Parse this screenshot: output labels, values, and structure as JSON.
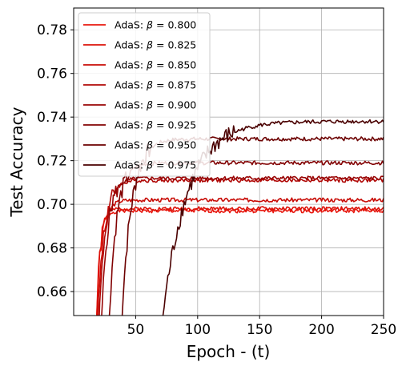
{
  "chart_data": {
    "type": "line",
    "title": "",
    "xlabel": "Epoch - (t)",
    "ylabel": "Test Accuracy",
    "xlim": [
      0,
      250
    ],
    "ylim": [
      0.649,
      0.79
    ],
    "xticks": [
      50,
      100,
      150,
      200,
      250
    ],
    "yticks": [
      0.66,
      0.68,
      0.7,
      0.72,
      0.74,
      0.76,
      0.78
    ],
    "ytick_labels": [
      "0.66",
      "0.68",
      "0.70",
      "0.72",
      "0.74",
      "0.76",
      "0.78"
    ],
    "grid": true,
    "legend_position": "top-left",
    "legend_prefix": "AdaS: ",
    "series": [
      {
        "name": "β = 0.800",
        "beta_label": "0.800",
        "color": "#e8180f",
        "start": 18,
        "tau": 3,
        "plateau": 0.697,
        "x": [
          18,
          20,
          22,
          24,
          26,
          28,
          30,
          35,
          40,
          50,
          60,
          80,
          100,
          125,
          150,
          175,
          200,
          225,
          250
        ],
        "y": [
          0.649,
          0.667,
          0.678,
          0.686,
          0.69,
          0.693,
          0.695,
          0.696,
          0.697,
          0.697,
          0.697,
          0.697,
          0.697,
          0.697,
          0.697,
          0.697,
          0.697,
          0.697,
          0.697
        ]
      },
      {
        "name": "β = 0.825",
        "beta_label": "0.825",
        "color": "#dc1209",
        "start": 18,
        "tau": 3,
        "plateau": 0.698,
        "x": [
          18,
          20,
          22,
          24,
          26,
          28,
          30,
          35,
          40,
          50,
          60,
          80,
          100,
          125,
          150,
          175,
          200,
          225,
          250
        ],
        "y": [
          0.649,
          0.668,
          0.679,
          0.687,
          0.691,
          0.694,
          0.696,
          0.697,
          0.698,
          0.698,
          0.698,
          0.698,
          0.698,
          0.698,
          0.698,
          0.698,
          0.698,
          0.698,
          0.698
        ]
      },
      {
        "name": "β = 0.850",
        "beta_label": "0.850",
        "color": "#c80c06",
        "start": 19,
        "tau": 4,
        "plateau": 0.702,
        "x": [
          19,
          21,
          23,
          25,
          27,
          29,
          32,
          36,
          40,
          50,
          60,
          80,
          100,
          125,
          150,
          175,
          200,
          225,
          250
        ],
        "y": [
          0.649,
          0.664,
          0.675,
          0.684,
          0.69,
          0.694,
          0.698,
          0.7,
          0.701,
          0.702,
          0.702,
          0.702,
          0.702,
          0.702,
          0.702,
          0.702,
          0.702,
          0.702,
          0.702
        ]
      },
      {
        "name": "β = 0.875",
        "beta_label": "0.875",
        "color": "#b00806",
        "start": 20,
        "tau": 5,
        "plateau": 0.711,
        "x": [
          20,
          23,
          26,
          29,
          32,
          35,
          40,
          45,
          50,
          60,
          80,
          100,
          125,
          150,
          175,
          200,
          225,
          250
        ],
        "y": [
          0.649,
          0.672,
          0.686,
          0.696,
          0.702,
          0.706,
          0.709,
          0.71,
          0.711,
          0.711,
          0.711,
          0.711,
          0.711,
          0.711,
          0.711,
          0.711,
          0.711,
          0.711
        ]
      },
      {
        "name": "β = 0.900",
        "beta_label": "0.900",
        "color": "#980404",
        "start": 22,
        "tau": 5,
        "plateau": 0.712,
        "x": [
          22,
          25,
          28,
          31,
          34,
          37,
          42,
          47,
          52,
          60,
          80,
          100,
          125,
          150,
          175,
          200,
          225,
          250
        ],
        "y": [
          0.649,
          0.673,
          0.687,
          0.697,
          0.703,
          0.707,
          0.71,
          0.711,
          0.712,
          0.712,
          0.712,
          0.712,
          0.712,
          0.712,
          0.712,
          0.712,
          0.712,
          0.712
        ]
      },
      {
        "name": "β = 0.925",
        "beta_label": "0.925",
        "color": "#820203",
        "start": 28,
        "tau": 6,
        "plateau": 0.719,
        "x": [
          28,
          31,
          34,
          37,
          40,
          44,
          48,
          53,
          58,
          65,
          80,
          100,
          125,
          150,
          175,
          200,
          225,
          250
        ],
        "y": [
          0.649,
          0.671,
          0.686,
          0.697,
          0.704,
          0.71,
          0.714,
          0.717,
          0.718,
          0.719,
          0.719,
          0.719,
          0.719,
          0.719,
          0.719,
          0.719,
          0.719,
          0.719
        ]
      },
      {
        "name": "β = 0.950",
        "beta_label": "0.950",
        "color": "#6c0000",
        "start": 38,
        "tau": 8,
        "plateau": 0.73,
        "x": [
          38,
          42,
          46,
          50,
          55,
          60,
          65,
          70,
          75,
          85,
          100,
          125,
          150,
          175,
          200,
          225,
          250
        ],
        "y": [
          0.649,
          0.674,
          0.691,
          0.703,
          0.713,
          0.72,
          0.724,
          0.727,
          0.728,
          0.729,
          0.73,
          0.73,
          0.73,
          0.73,
          0.73,
          0.73,
          0.73
        ]
      },
      {
        "name": "β = 0.975",
        "beta_label": "0.975",
        "color": "#4a0000",
        "start": 70,
        "tau": 20,
        "plateau": 0.738,
        "x": [
          70,
          75,
          80,
          85,
          90,
          95,
          100,
          110,
          120,
          130,
          140,
          150,
          165,
          180,
          200,
          225,
          250
        ],
        "y": [
          0.649,
          0.657,
          0.665,
          0.675,
          0.684,
          0.691,
          0.697,
          0.71,
          0.718,
          0.725,
          0.729,
          0.732,
          0.735,
          0.736,
          0.737,
          0.738,
          0.738
        ]
      }
    ]
  }
}
